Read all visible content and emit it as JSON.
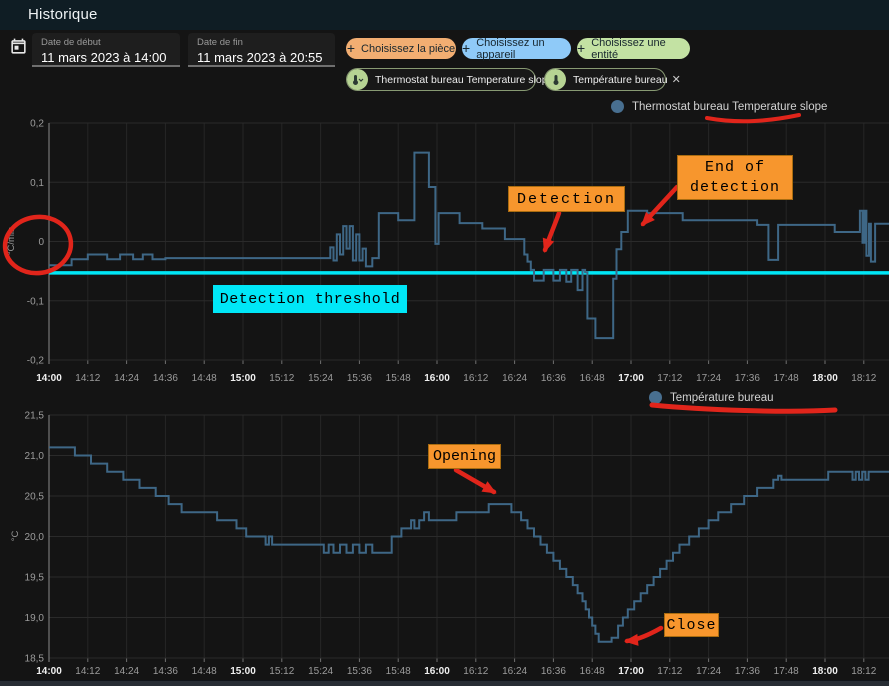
{
  "header": {
    "title": "Historique"
  },
  "icons": {
    "plus": "+",
    "close": "✕"
  },
  "toolbar": {
    "start_date": {
      "label": "Date de début",
      "value": "11 mars 2023 à 14:00"
    },
    "end_date": {
      "label": "Date de fin",
      "value": "11 mars 2023 à 20:55"
    },
    "filter_chips": [
      {
        "label": "Choisissez la pièce",
        "color": "#f2ae72"
      },
      {
        "label": "Choisissez un appareil",
        "color": "#8fcaf8"
      },
      {
        "label": "Choisissez une entité",
        "color": "#c3e2a3"
      }
    ],
    "entity_chips": [
      {
        "label": "Thermostat bureau Temperature slope"
      },
      {
        "label": "Température bureau"
      }
    ]
  },
  "annotations": {
    "detection_threshold": "Detection threshold",
    "detection": "Detection",
    "end_of_detection": "End of detection",
    "opening": "Opening",
    "close": "Close",
    "box_color": "#f7962d",
    "highlight_color": "#00e7f7",
    "marker_color": "#e1251b"
  },
  "chart_data": [
    {
      "type": "line",
      "legend": "Thermostat bureau Temperature slope",
      "ylabel": "°C/min",
      "ylim": [
        -0.2,
        0.2
      ],
      "y_ticks": {
        "values": [
          0.2,
          0.1,
          0,
          -0.1,
          -0.2
        ],
        "labels": [
          "0,2",
          "0,1",
          "0",
          "-0,1",
          "-0,2"
        ]
      },
      "x_ticks": {
        "labels": [
          "14:00",
          "14:12",
          "14:24",
          "14:36",
          "14:48",
          "15:00",
          "15:12",
          "15:24",
          "15:36",
          "15:48",
          "16:00",
          "16:12",
          "16:24",
          "16:36",
          "16:48",
          "17:00",
          "17:12",
          "17:24",
          "17:36",
          "17:48",
          "18:00",
          "18:12"
        ],
        "bold": [
          "14:00",
          "15:00",
          "16:00",
          "17:00",
          "18:00"
        ],
        "step_minutes": 12
      },
      "grid": true,
      "line_color": "#3e6786",
      "legend_dot_color": "#486f90",
      "stepped": true,
      "threshold": {
        "value": -0.053,
        "color": "#00e7f7"
      },
      "series": [
        {
          "name": "Thermostat bureau Temperature slope",
          "x_unit": "minutes after 14:00",
          "points": [
            [
              0,
              -0.04
            ],
            [
              7,
              -0.03
            ],
            [
              12,
              -0.022
            ],
            [
              18,
              -0.03
            ],
            [
              22,
              -0.022
            ],
            [
              26,
              -0.03
            ],
            [
              29,
              -0.022
            ],
            [
              32,
              -0.03
            ],
            [
              36,
              -0.028
            ],
            [
              86,
              -0.028
            ],
            [
              87,
              -0.01
            ],
            [
              88,
              -0.032
            ],
            [
              89,
              0.012
            ],
            [
              90,
              -0.022
            ],
            [
              91,
              0.026
            ],
            [
              92,
              -0.012
            ],
            [
              93,
              0.026
            ],
            [
              94,
              -0.032
            ],
            [
              95,
              0.012
            ],
            [
              96,
              -0.032
            ],
            [
              97,
              -0.012
            ],
            [
              98,
              -0.042
            ],
            [
              100,
              -0.028
            ],
            [
              102,
              0.048
            ],
            [
              107,
              0.048
            ],
            [
              108,
              0.036
            ],
            [
              112,
              0.036
            ],
            [
              113,
              0.15
            ],
            [
              117,
              0.15
            ],
            [
              117.5,
              0.092
            ],
            [
              119,
              0.092
            ],
            [
              119.5,
              -0.004
            ],
            [
              120.5,
              0.048
            ],
            [
              126,
              0.048
            ],
            [
              127,
              0.031
            ],
            [
              133,
              0.031
            ],
            [
              134,
              0.022
            ],
            [
              140,
              0.022
            ],
            [
              141,
              0.004
            ],
            [
              146,
              0.004
            ],
            [
              147,
              -0.022
            ],
            [
              148,
              -0.034
            ],
            [
              149,
              -0.048
            ],
            [
              150,
              -0.066
            ],
            [
              153,
              -0.048
            ],
            [
              156,
              -0.066
            ],
            [
              158,
              -0.048
            ],
            [
              160,
              -0.068
            ],
            [
              161.5,
              -0.048
            ],
            [
              163.5,
              -0.082
            ],
            [
              165,
              -0.048
            ],
            [
              165.8,
              -0.052
            ],
            [
              166.5,
              -0.13
            ],
            [
              169,
              -0.163
            ],
            [
              174,
              -0.163
            ],
            [
              174.5,
              -0.063
            ],
            [
              175.5,
              -0.013
            ],
            [
              177,
              0.016
            ],
            [
              179,
              0.052
            ],
            [
              185,
              0.048
            ],
            [
              196,
              0.036
            ],
            [
              219,
              0.028
            ],
            [
              222,
              0.028
            ],
            [
              222.5,
              -0.031
            ],
            [
              225,
              -0.031
            ],
            [
              225.5,
              0.028
            ],
            [
              242,
              0.028
            ],
            [
              243,
              0.016
            ],
            [
              250,
              0.016
            ],
            [
              250.8,
              0.052
            ],
            [
              251.6,
              -0.002
            ],
            [
              252.2,
              0.052
            ],
            [
              252.8,
              -0.024
            ],
            [
              253.6,
              0.03
            ],
            [
              254.2,
              -0.034
            ],
            [
              255.5,
              0.03
            ],
            [
              260,
              0.03
            ]
          ]
        }
      ]
    },
    {
      "type": "line",
      "legend": "Température bureau",
      "ylabel": "°C",
      "ylim": [
        18.5,
        21.5
      ],
      "y_ticks": {
        "values": [
          21.5,
          21.0,
          20.5,
          20.0,
          19.5,
          19.0,
          18.5
        ],
        "labels": [
          "21,5",
          "21,0",
          "20,5",
          "20,0",
          "19,5",
          "19,0",
          "18,5"
        ]
      },
      "x_ticks": {
        "labels": [
          "14:00",
          "14:12",
          "14:24",
          "14:36",
          "14:48",
          "15:00",
          "15:12",
          "15:24",
          "15:36",
          "15:48",
          "16:00",
          "16:12",
          "16:24",
          "16:36",
          "16:48",
          "17:00",
          "17:12",
          "17:24",
          "17:36",
          "17:48",
          "18:00",
          "18:12"
        ],
        "bold": [
          "14:00",
          "15:00",
          "16:00",
          "17:00",
          "18:00"
        ],
        "step_minutes": 12
      },
      "grid": true,
      "line_color": "#3e6786",
      "legend_dot_color": "#486f90",
      "stepped": true,
      "series": [
        {
          "name": "Température bureau",
          "x_unit": "minutes after 14:00",
          "points": [
            [
              0,
              21.1
            ],
            [
              8,
              21.0
            ],
            [
              13,
              20.9
            ],
            [
              18,
              20.8
            ],
            [
              23,
              20.7
            ],
            [
              28,
              20.6
            ],
            [
              33,
              20.5
            ],
            [
              37,
              20.4
            ],
            [
              41,
              20.3
            ],
            [
              52,
              20.2
            ],
            [
              58,
              20.1
            ],
            [
              61,
              20.0
            ],
            [
              67,
              19.9
            ],
            [
              68,
              20.0
            ],
            [
              69,
              19.9
            ],
            [
              85,
              19.8
            ],
            [
              86.5,
              19.9
            ],
            [
              88,
              19.8
            ],
            [
              90,
              19.9
            ],
            [
              92,
              19.8
            ],
            [
              94,
              19.9
            ],
            [
              96,
              19.8
            ],
            [
              98,
              19.9
            ],
            [
              100,
              19.8
            ],
            [
              106,
              20.0
            ],
            [
              109,
              20.1
            ],
            [
              112,
              20.2
            ],
            [
              113,
              20.1
            ],
            [
              114.5,
              20.2
            ],
            [
              116,
              20.3
            ],
            [
              117.5,
              20.2
            ],
            [
              126,
              20.3
            ],
            [
              136,
              20.4
            ],
            [
              143,
              20.3
            ],
            [
              146,
              20.2
            ],
            [
              148,
              20.1
            ],
            [
              150,
              20.0
            ],
            [
              152,
              19.9
            ],
            [
              154,
              19.8
            ],
            [
              156,
              19.7
            ],
            [
              158,
              19.6
            ],
            [
              160,
              19.5
            ],
            [
              162,
              19.4
            ],
            [
              163.5,
              19.3
            ],
            [
              165,
              19.2
            ],
            [
              166,
              19.1
            ],
            [
              167,
              19.0
            ],
            [
              168,
              18.9
            ],
            [
              169,
              18.8
            ],
            [
              170,
              18.7
            ],
            [
              174,
              18.75
            ],
            [
              176,
              18.9
            ],
            [
              177.5,
              19.0
            ],
            [
              179,
              19.1
            ],
            [
              181,
              19.2
            ],
            [
              183,
              19.3
            ],
            [
              185,
              19.4
            ],
            [
              187,
              19.5
            ],
            [
              189,
              19.6
            ],
            [
              191,
              19.7
            ],
            [
              193,
              19.8
            ],
            [
              195,
              19.9
            ],
            [
              198,
              20.0
            ],
            [
              201,
              20.1
            ],
            [
              204,
              20.2
            ],
            [
              207,
              20.3
            ],
            [
              211,
              20.4
            ],
            [
              215,
              20.5
            ],
            [
              219,
              20.6
            ],
            [
              224,
              20.7
            ],
            [
              225.5,
              20.75
            ],
            [
              226.5,
              20.7
            ],
            [
              241,
              20.8
            ],
            [
              248.5,
              20.7
            ],
            [
              249.5,
              20.8
            ],
            [
              250.5,
              20.7
            ],
            [
              251.5,
              20.8
            ],
            [
              252.5,
              20.7
            ],
            [
              253.5,
              20.8
            ],
            [
              260,
              20.8
            ]
          ]
        }
      ]
    }
  ]
}
